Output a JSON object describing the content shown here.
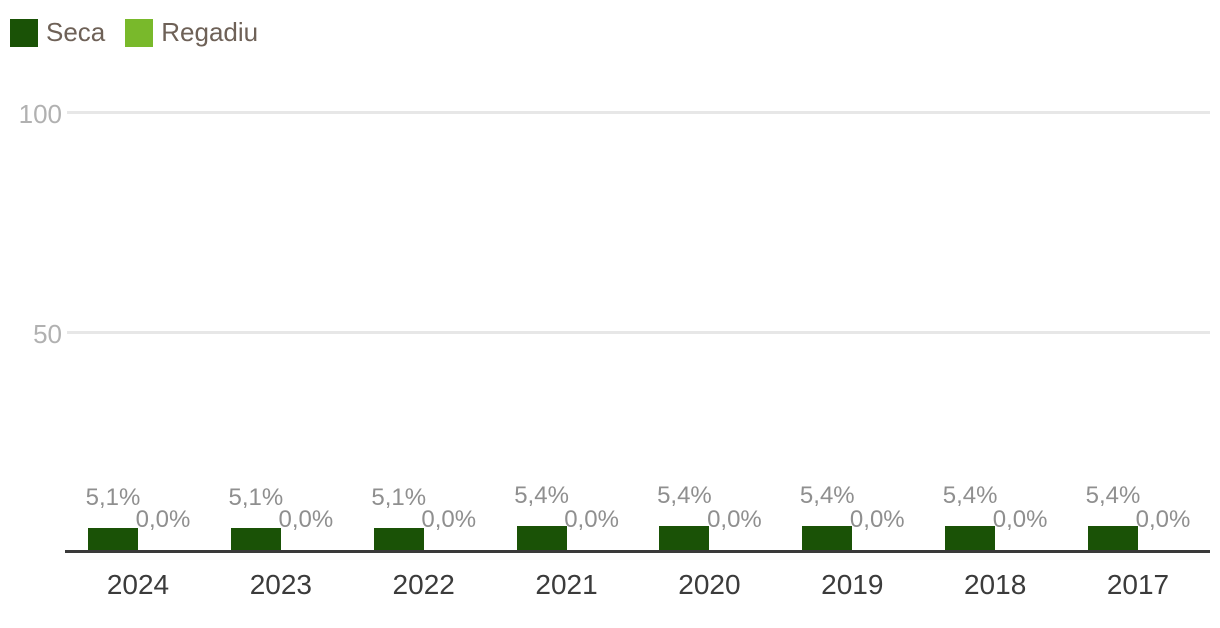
{
  "chart_data": {
    "type": "bar",
    "title": "",
    "categories": [
      "2024",
      "2023",
      "2022",
      "2021",
      "2020",
      "2019",
      "2018",
      "2017"
    ],
    "series": [
      {
        "name": "Seca",
        "color": "#1a5206",
        "values": [
          5.1,
          5.1,
          5.1,
          5.4,
          5.4,
          5.4,
          5.4,
          5.4
        ],
        "labels": [
          "5,1%",
          "5,1%",
          "5,1%",
          "5,4%",
          "5,4%",
          "5,4%",
          "5,4%",
          "5,4%"
        ]
      },
      {
        "name": "Regadiu",
        "color": "#79b92b",
        "values": [
          0,
          0,
          0,
          0,
          0,
          0,
          0,
          0
        ],
        "labels": [
          "0,0%",
          "0,0%",
          "0,0%",
          "0,0%",
          "0,0%",
          "0,0%",
          "0,0%",
          "0,0%"
        ]
      }
    ],
    "xlabel": "",
    "ylabel": "",
    "ylim": [
      0,
      100
    ],
    "y_axis": {
      "ticks": [
        50,
        100
      ],
      "tick_labels": [
        "50",
        "100"
      ]
    },
    "grid": true,
    "legend_position": "top-left",
    "value_labels_visible": true
  },
  "colors": {
    "background": "#ffffff",
    "grid_line": "#e7e7e7",
    "axis_line": "#3a3a3a",
    "y_tick_text": "#b1b1b1",
    "value_label_text": "#8f8f8f",
    "x_tick_text": "#3b3b3b",
    "legend_text": "#6e6157"
  }
}
